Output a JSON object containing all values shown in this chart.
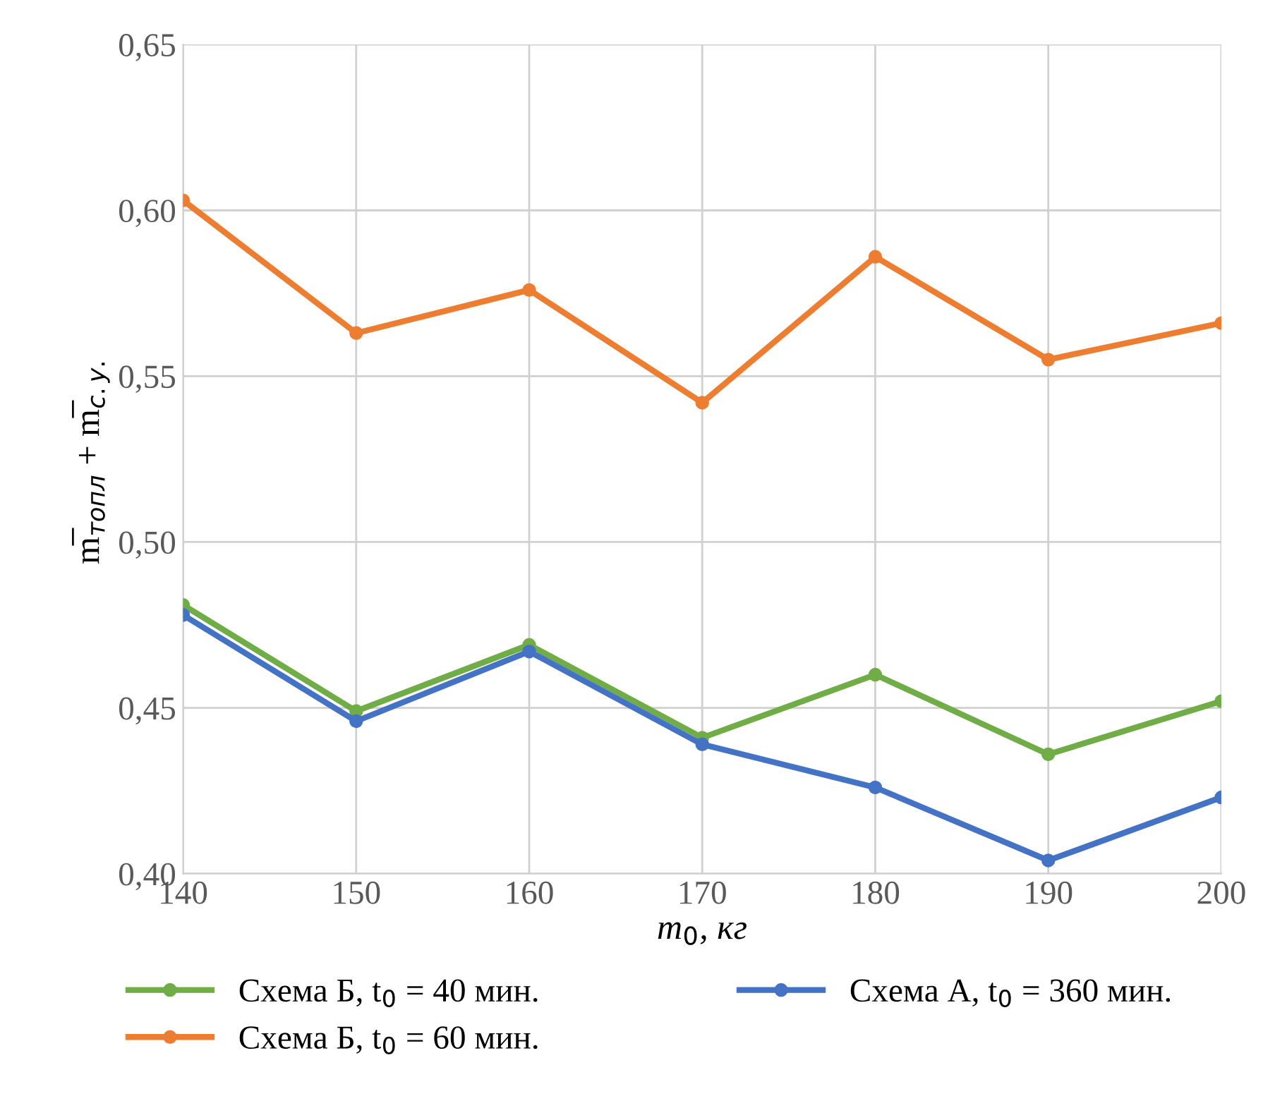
{
  "chart_data": {
    "type": "line",
    "xlabel": "m$_{0}$, кг",
    "ylabel": "m̅$_{топл}$ + m̅$_{с.у.}$",
    "x": [
      140,
      150,
      160,
      170,
      180,
      190,
      200
    ],
    "series": [
      {
        "name": "Схема Б, t$_{0}$ = 40 мин.",
        "color": "#70ad47",
        "values": [
          0.481,
          0.449,
          0.469,
          0.441,
          0.46,
          0.436,
          0.452
        ]
      },
      {
        "name": "Схема Б, t$_{0}$ = 60 мин.",
        "color": "#ed7d31",
        "values": [
          0.603,
          0.563,
          0.576,
          0.542,
          0.586,
          0.555,
          0.566
        ]
      },
      {
        "name": "Схема А, t$_{0}$ = 360 мин.",
        "color": "#4472c4",
        "values": [
          0.478,
          0.446,
          0.467,
          0.439,
          0.426,
          0.404,
          0.423
        ]
      }
    ],
    "xlim": [
      140,
      200
    ],
    "xticks": [
      140,
      150,
      160,
      170,
      180,
      190,
      200
    ],
    "ylim": [
      0.4,
      0.65
    ],
    "yticks": [
      {
        "value": 0.4,
        "label": "0,40"
      },
      {
        "value": 0.45,
        "label": "0,45"
      },
      {
        "value": 0.5,
        "label": "0,50"
      },
      {
        "value": 0.55,
        "label": "0,55"
      },
      {
        "value": 0.6,
        "label": "0,60"
      },
      {
        "value": 0.65,
        "label": "0,65"
      }
    ],
    "grid": true,
    "legend": "bottom",
    "marker": "circle",
    "line_style": "solid"
  }
}
